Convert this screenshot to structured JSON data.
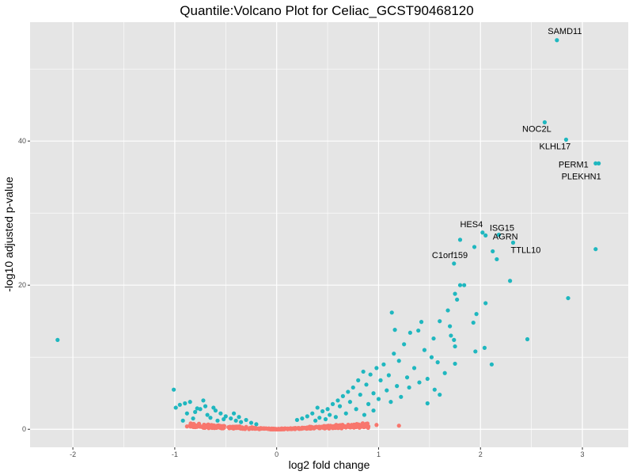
{
  "chart_data": {
    "type": "scatter",
    "title": "Quantile:Volcano Plot for Celiac_GCST90468120",
    "xlabel": "log2 fold change",
    "ylabel": "-log10 adjusted p-value",
    "xlim": [
      -2.42,
      3.45
    ],
    "ylim": [
      -2.5,
      56.5
    ],
    "x_ticks": [
      -2,
      -1,
      0,
      1,
      2,
      3
    ],
    "y_ticks": [
      0,
      20,
      40
    ],
    "grid": true,
    "legend": "none",
    "colors": {
      "panel": "#e5e5e5",
      "grid": "#ffffff",
      "significant": "#1fb7bf",
      "not_significant": "#f8766d"
    },
    "series": [
      {
        "points": [
          [
            2.75,
            54.0
          ],
          [
            2.63,
            42.6
          ],
          [
            2.84,
            40.2
          ],
          [
            3.13,
            36.9
          ],
          [
            3.16,
            36.9
          ],
          [
            2.02,
            27.3
          ],
          [
            2.05,
            26.9
          ],
          [
            2.18,
            27.0
          ],
          [
            1.8,
            26.3
          ],
          [
            1.94,
            25.3
          ],
          [
            2.32,
            25.9
          ],
          [
            2.12,
            24.7
          ],
          [
            3.13,
            25.0
          ],
          [
            2.16,
            23.6
          ],
          [
            1.74,
            23.0
          ],
          [
            2.29,
            20.6
          ],
          [
            1.8,
            20.0
          ],
          [
            1.84,
            20.0
          ],
          [
            1.75,
            18.8
          ],
          [
            1.77,
            18.0
          ],
          [
            2.86,
            18.2
          ],
          [
            2.05,
            17.5
          ],
          [
            1.96,
            16.0
          ],
          [
            1.93,
            14.8
          ],
          [
            1.68,
            16.5
          ],
          [
            1.7,
            14.3
          ],
          [
            1.6,
            15.0
          ],
          [
            1.71,
            13.0
          ],
          [
            1.74,
            12.4
          ],
          [
            1.75,
            11.5
          ],
          [
            2.46,
            12.5
          ],
          [
            2.04,
            11.3
          ],
          [
            1.95,
            10.8
          ],
          [
            2.11,
            9.0
          ],
          [
            1.75,
            9.1
          ],
          [
            1.13,
            16.2
          ],
          [
            1.16,
            13.8
          ],
          [
            1.31,
            13.4
          ],
          [
            1.39,
            13.7
          ],
          [
            1.42,
            14.9
          ],
          [
            1.54,
            12.6
          ],
          [
            1.45,
            11.0
          ],
          [
            1.52,
            10.0
          ],
          [
            1.15,
            10.5
          ],
          [
            1.25,
            11.8
          ],
          [
            1.2,
            9.5
          ],
          [
            1.35,
            8.5
          ],
          [
            1.48,
            7.0
          ],
          [
            1.55,
            5.5
          ],
          [
            1.6,
            4.8
          ],
          [
            1.4,
            6.5
          ],
          [
            1.28,
            7.2
          ],
          [
            1.05,
            9.0
          ],
          [
            0.98,
            8.5
          ],
          [
            1.1,
            7.5
          ],
          [
            0.92,
            7.6
          ],
          [
            0.88,
            6.2
          ],
          [
            0.95,
            5.0
          ],
          [
            1.02,
            6.8
          ],
          [
            0.85,
            8.0
          ],
          [
            0.8,
            6.8
          ],
          [
            0.75,
            5.8
          ],
          [
            0.7,
            5.2
          ],
          [
            0.65,
            4.6
          ],
          [
            0.6,
            4.0
          ],
          [
            0.55,
            3.5
          ],
          [
            0.5,
            2.8
          ],
          [
            0.45,
            2.5
          ],
          [
            0.4,
            3.0
          ],
          [
            0.35,
            2.2
          ],
          [
            0.3,
            1.8
          ],
          [
            0.25,
            1.5
          ],
          [
            0.2,
            1.3
          ],
          [
            0.82,
            4.8
          ],
          [
            0.72,
            3.8
          ],
          [
            0.62,
            3.2
          ],
          [
            0.52,
            2.0
          ],
          [
            0.42,
            1.6
          ],
          [
            0.9,
            3.5
          ],
          [
            1.0,
            4.2
          ],
          [
            1.08,
            5.4
          ],
          [
            1.18,
            6.0
          ],
          [
            1.22,
            4.5
          ],
          [
            1.3,
            5.8
          ],
          [
            0.78,
            2.8
          ],
          [
            0.68,
            2.2
          ],
          [
            0.58,
            1.7
          ],
          [
            0.48,
            1.4
          ],
          [
            0.38,
            1.2
          ],
          [
            1.12,
            3.8
          ],
          [
            0.95,
            2.6
          ],
          [
            0.86,
            2.0
          ],
          [
            1.48,
            3.6
          ],
          [
            1.58,
            9.3
          ],
          [
            1.65,
            7.8
          ],
          [
            -2.15,
            12.4
          ],
          [
            -1.01,
            5.5
          ],
          [
            -0.99,
            3.0
          ],
          [
            -0.95,
            3.4
          ],
          [
            -0.9,
            3.6
          ],
          [
            -0.85,
            3.8
          ],
          [
            -0.8,
            2.4
          ],
          [
            -0.75,
            2.8
          ],
          [
            -0.7,
            3.2
          ],
          [
            -0.68,
            2.0
          ],
          [
            -0.65,
            1.6
          ],
          [
            -0.6,
            2.6
          ],
          [
            -0.55,
            2.2
          ],
          [
            -0.5,
            1.8
          ],
          [
            -0.45,
            1.5
          ],
          [
            -0.4,
            1.2
          ],
          [
            -0.35,
            1.0
          ],
          [
            -0.3,
            1.3
          ],
          [
            -0.25,
            0.9
          ],
          [
            -0.2,
            0.7
          ],
          [
            -0.88,
            2.2
          ],
          [
            -0.78,
            2.9
          ],
          [
            -0.72,
            4.0
          ],
          [
            -0.62,
            3.0
          ],
          [
            -0.52,
            1.4
          ],
          [
            -0.92,
            1.2
          ],
          [
            -0.82,
            1.5
          ],
          [
            -0.58,
            1.2
          ],
          [
            -0.42,
            2.2
          ],
          [
            -0.37,
            1.7
          ]
        ]
      },
      {
        "points": [
          [
            1.2,
            0.5
          ],
          [
            0.98,
            0.6
          ],
          [
            0.9,
            0.4
          ],
          [
            0.82,
            0.3
          ],
          [
            -0.88,
            0.4
          ],
          [
            -0.8,
            0.3
          ],
          [
            -0.7,
            0.5
          ],
          [
            -0.6,
            0.4
          ]
        ]
      }
    ],
    "annotations": [
      {
        "text": "SAMD11",
        "x": 2.75,
        "y": 54.0
      },
      {
        "text": "NOC2L",
        "x": 2.63,
        "y": 42.6
      },
      {
        "text": "KLHL17",
        "x": 2.84,
        "y": 40.2
      },
      {
        "text": "PERM1",
        "x": 3.13,
        "y": 36.9
      },
      {
        "text": "PLEKHN1",
        "x": 3.16,
        "y": 36.9
      },
      {
        "text": "HES4",
        "x": 2.02,
        "y": 27.3
      },
      {
        "text": "ISG15",
        "x": 2.18,
        "y": 27.0
      },
      {
        "text": "AGRN",
        "x": 2.05,
        "y": 26.9
      },
      {
        "text": "C1orf159",
        "x": 1.94,
        "y": 25.3
      },
      {
        "text": "TTLL10",
        "x": 2.32,
        "y": 25.9
      }
    ]
  }
}
